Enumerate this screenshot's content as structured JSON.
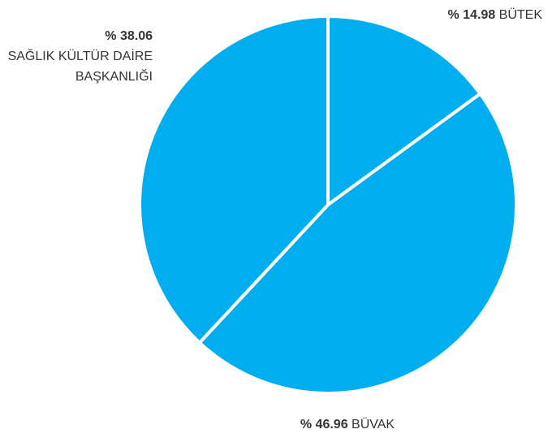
{
  "chart_data": {
    "type": "pie",
    "categories": [
      "BÜTEK",
      "BÜVAK",
      "SAĞLIK KÜLTÜR DAİRE BAŞKANLIĞI"
    ],
    "values": [
      14.98,
      46.96,
      38.06
    ],
    "value_labels": [
      "% 14.98",
      "% 46.96",
      "% 38.06"
    ],
    "color": "#00adef"
  }
}
